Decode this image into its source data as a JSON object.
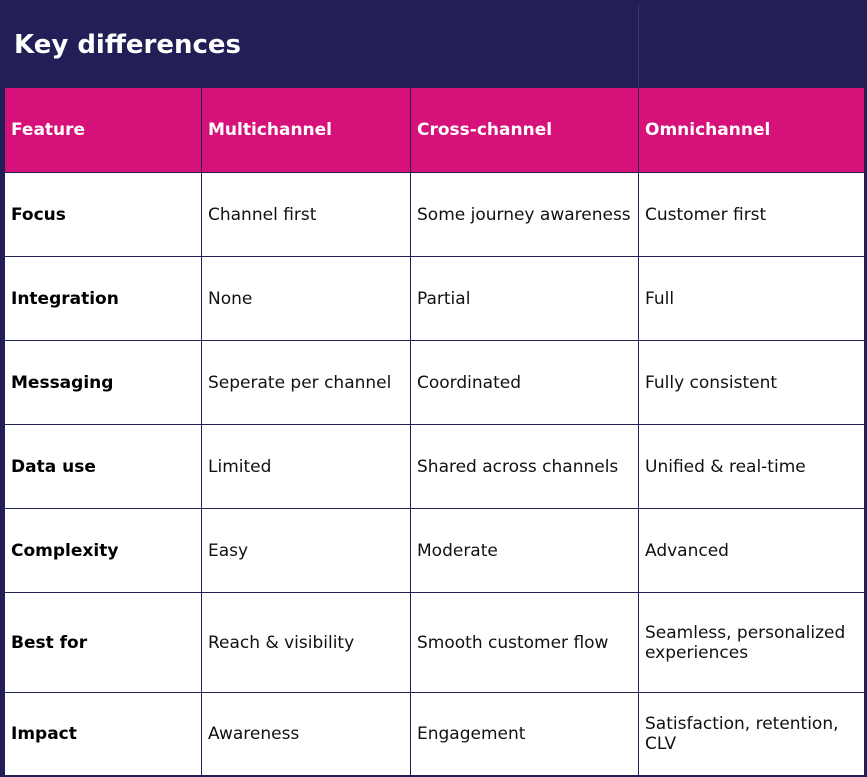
{
  "title": "Key differences",
  "headers": [
    "Feature",
    "Multichannel",
    "Cross-channel",
    "Omnichannel"
  ],
  "rows": [
    [
      "Focus",
      "Channel first",
      "Some journey awareness",
      "Customer first"
    ],
    [
      "Integration",
      "None",
      "Partial",
      "Full"
    ],
    [
      "Messaging",
      "Seperate per channel",
      "Coordinated",
      "Fully consistent"
    ],
    [
      "Data use",
      "Limited",
      "Shared across channels",
      "Unified & real-time"
    ],
    [
      "Complexity",
      "Easy",
      "Moderate",
      "Advanced"
    ],
    [
      "Best for",
      "Reach & visibility",
      "Smooth customer flow",
      "Seamless, personalized experiences"
    ],
    [
      "Impact",
      "Awareness",
      "Engagement",
      "Satisfaction, retention, CLV"
    ]
  ],
  "colors": {
    "background": "#221f56",
    "header": "#d6117a",
    "cell": "#ffffff"
  }
}
